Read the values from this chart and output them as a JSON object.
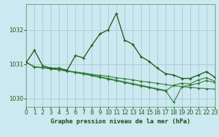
{
  "title": "Graphe pression niveau de la mer (hPa)",
  "background_color": "#cce8f0",
  "grid_color": "#aaccd8",
  "line_color_dark": "#1a5c1a",
  "line_color_mid": "#2d7a2d",
  "xlim": [
    0,
    23
  ],
  "ylim": [
    1029.75,
    1032.75
  ],
  "yticks": [
    1030,
    1031,
    1032
  ],
  "xticks": [
    0,
    1,
    2,
    3,
    4,
    5,
    6,
    7,
    8,
    9,
    10,
    11,
    12,
    13,
    14,
    15,
    16,
    17,
    18,
    19,
    20,
    21,
    22,
    23
  ],
  "series_main_x": [
    0,
    1,
    2,
    3,
    4,
    5,
    6,
    7,
    8,
    9,
    10,
    11,
    12,
    13,
    14,
    15,
    16,
    17,
    18,
    19,
    20,
    21,
    22,
    23
  ],
  "series_main_y": [
    1031.05,
    1031.4,
    1030.95,
    1030.88,
    1030.88,
    1030.82,
    1031.25,
    1031.18,
    1031.55,
    1031.88,
    1032.0,
    1032.48,
    1031.7,
    1031.58,
    1031.22,
    1031.08,
    1030.88,
    1030.72,
    1030.68,
    1030.58,
    1030.58,
    1030.68,
    1030.78,
    1030.62
  ],
  "series_flat1_x": [
    0,
    1,
    2,
    3,
    4,
    5,
    6,
    7,
    8,
    9,
    10,
    11,
    12,
    13,
    14,
    15,
    16,
    17,
    18,
    19,
    20,
    21,
    22,
    23
  ],
  "series_flat1_y": [
    1031.05,
    1030.92,
    1030.9,
    1030.87,
    1030.84,
    1030.8,
    1030.77,
    1030.74,
    1030.7,
    1030.67,
    1030.64,
    1030.6,
    1030.57,
    1030.54,
    1030.5,
    1030.47,
    1030.44,
    1030.4,
    1030.37,
    1030.34,
    1030.32,
    1030.3,
    1030.28,
    1030.27
  ],
  "series_flat2_x": [
    0,
    1,
    2,
    3,
    4,
    5,
    6,
    7,
    8,
    9,
    10,
    11,
    12,
    13,
    14,
    15,
    16,
    17,
    18,
    19,
    20,
    21,
    22,
    23
  ],
  "series_flat2_y": [
    1031.05,
    1030.92,
    1030.89,
    1030.87,
    1030.84,
    1030.8,
    1030.76,
    1030.72,
    1030.68,
    1030.63,
    1030.58,
    1030.53,
    1030.48,
    1030.43,
    1030.38,
    1030.33,
    1030.28,
    1030.23,
    1029.88,
    1030.34,
    1030.38,
    1030.44,
    1030.52,
    1030.46
  ],
  "series_flat3_x": [
    0,
    1,
    2,
    3,
    4,
    5,
    6,
    7,
    8,
    9,
    10,
    11,
    12,
    13,
    14,
    15,
    16,
    17,
    18,
    19,
    20,
    21,
    22,
    23
  ],
  "series_flat3_y": [
    1031.05,
    1030.91,
    1030.89,
    1030.86,
    1030.83,
    1030.79,
    1030.75,
    1030.71,
    1030.66,
    1030.61,
    1030.56,
    1030.51,
    1030.46,
    1030.41,
    1030.36,
    1030.31,
    1030.26,
    1030.21,
    1030.38,
    1030.44,
    1030.42,
    1030.54,
    1030.6,
    1030.5
  ],
  "tick_fontsize": 6,
  "title_fontsize": 6.5
}
